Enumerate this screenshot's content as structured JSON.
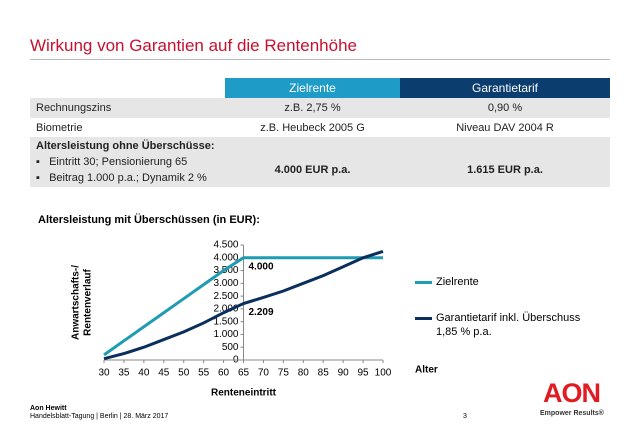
{
  "header": {
    "title": "Wirkung von Garantien auf die Rentenhöhe"
  },
  "table": {
    "columns": [
      "Zielrente",
      "Garantietarif"
    ],
    "rows": [
      [
        "Rechnungszins",
        "z.B. 2,75 %",
        "0,90 %"
      ],
      [
        "Biometrie",
        "z.B. Heubeck 2005 G",
        "Niveau DAV 2004 R"
      ]
    ],
    "summary": {
      "label": "Altersleistung ohne Überschüsse:",
      "bullets": [
        "Eintritt 30; Pensionierung 65",
        "Beitrag 1.000 p.a.; Dynamik 2 %"
      ],
      "values": [
        "4.000 EUR p.a.",
        "1.615 EUR p.a."
      ]
    }
  },
  "chart_data": {
    "type": "line",
    "title": "Altersleistung mit Überschüssen (in EUR):",
    "ylabel": [
      "Anwartschafts-/",
      "Rentenverlauf"
    ],
    "xlabel": "Renteneintritt",
    "x_unit_label": "Alter",
    "x": [
      30,
      35,
      40,
      45,
      50,
      55,
      60,
      65,
      70,
      75,
      80,
      85,
      90,
      95,
      100
    ],
    "xlim": [
      30,
      100
    ],
    "xticks": [
      30,
      35,
      40,
      45,
      50,
      55,
      60,
      65,
      70,
      75,
      80,
      85,
      90,
      95,
      100
    ],
    "ylim": [
      0,
      4500
    ],
    "yticks": [
      0,
      500,
      {
        "value": 1000,
        "label": "1.000"
      },
      {
        "value": 1500,
        "label": "1.500"
      },
      {
        "value": 2000,
        "label": "2.000"
      },
      {
        "value": 2500,
        "label": "2.500"
      },
      {
        "value": 3000,
        "label": "3.000"
      },
      {
        "value": 3500,
        "label": "3.500"
      },
      {
        "value": 4000,
        "label": "4.000"
      },
      {
        "value": 4500,
        "label": "4.500"
      }
    ],
    "yaxis_crossing": 65,
    "grid": false,
    "legend": "right",
    "series": [
      {
        "name": "Zielrente",
        "color": "#1f9bb4",
        "values": [
          200,
          750,
          1300,
          1850,
          2400,
          2950,
          3500,
          4000,
          4000,
          4000,
          4000,
          4000,
          4000,
          4000,
          4000
        ],
        "value_labels": [
          null,
          null,
          null,
          null,
          null,
          null,
          null,
          "4.000",
          null,
          null,
          null,
          null,
          null,
          null,
          null
        ]
      },
      {
        "name": "Garantietarif inkl. Überschuss 1,85 % p.a.",
        "color": "#0a2f5c",
        "values": [
          50,
          250,
          500,
          800,
          1100,
          1450,
          1850,
          2209,
          2450,
          2700,
          3000,
          3300,
          3650,
          4000,
          4250
        ],
        "value_labels": [
          null,
          null,
          null,
          null,
          null,
          null,
          null,
          "2.209",
          null,
          null,
          null,
          null,
          null,
          null,
          null
        ]
      }
    ]
  },
  "footer": {
    "company": "Aon Hewitt",
    "event": "Handelsblatt-Tagung  |  Berlin  |  28. März 2017",
    "page": "3",
    "logo": "AON",
    "slogan": "Empower Results®"
  }
}
